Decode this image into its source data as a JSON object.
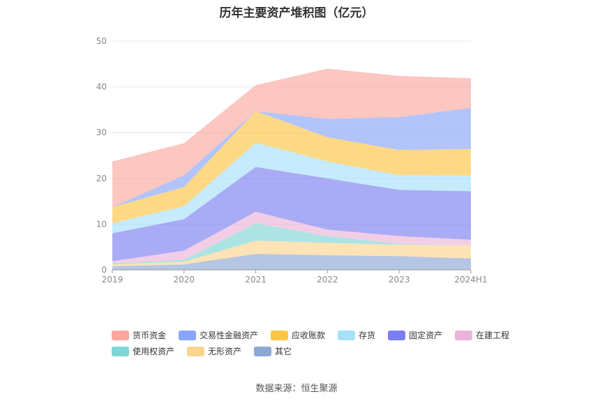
{
  "chart_data": {
    "type": "area",
    "stacked": true,
    "title": "历年主要资产堆积图（亿元）",
    "categories": [
      "2019",
      "2020",
      "2021",
      "2022",
      "2023",
      "2024H1"
    ],
    "ylim": [
      0,
      50
    ],
    "yticks": [
      0,
      10,
      20,
      30,
      40,
      50
    ],
    "grid": true,
    "legend_position": "bottom",
    "series": [
      {
        "name": "其它",
        "color": "#8ea8d6",
        "values": [
          0.8,
          1.2,
          3.5,
          3.2,
          3.0,
          2.5
        ]
      },
      {
        "name": "无形资产",
        "color": "#fcd48e",
        "values": [
          0.4,
          0.6,
          2.9,
          2.7,
          2.5,
          2.9
        ]
      },
      {
        "name": "使用权资产",
        "color": "#7fd6d4",
        "values": [
          0.2,
          0.4,
          3.8,
          1.5,
          0.2,
          0.0
        ]
      },
      {
        "name": "在建工程",
        "color": "#ebb3d9",
        "values": [
          0.5,
          2.0,
          2.5,
          1.4,
          1.7,
          1.2
        ]
      },
      {
        "name": "固定资产",
        "color": "#7b7ef0",
        "values": [
          6.1,
          6.9,
          9.8,
          11.2,
          10.1,
          10.6
        ]
      },
      {
        "name": "存货",
        "color": "#a6e0fb",
        "values": [
          2.2,
          2.8,
          5.3,
          3.7,
          3.2,
          3.4
        ]
      },
      {
        "name": "应收账款",
        "color": "#fcc545",
        "values": [
          3.5,
          4.2,
          6.9,
          5.3,
          5.5,
          5.8
        ]
      },
      {
        "name": "交易性金融资产",
        "color": "#89a5f8",
        "values": [
          0.0,
          2.6,
          0.0,
          4.0,
          7.2,
          9.0
        ]
      },
      {
        "name": "货币资金",
        "color": "#fba79f",
        "values": [
          10.0,
          7.0,
          5.7,
          11.0,
          9.0,
          6.5
        ]
      }
    ],
    "source": "数据来源：恒生聚源"
  },
  "legend": {
    "row1": [
      "货币资金",
      "交易性金融资产",
      "应收账款",
      "存货",
      "固定资产",
      "在建工程"
    ],
    "row2": [
      "使用权资产",
      "无形资产",
      "其它"
    ]
  }
}
